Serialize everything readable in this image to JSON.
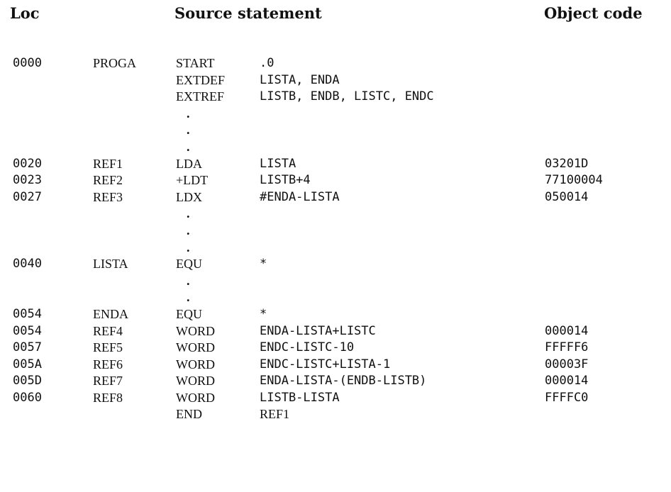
{
  "headers": {
    "loc": "Loc",
    "source": "Source statement",
    "object": "Object code"
  },
  "rows": [
    {
      "loc": "0000",
      "label": "PROGA",
      "op": "START",
      "operand": ".0",
      "obj": "",
      "opnd_style": "mono"
    },
    {
      "loc": "",
      "label": "",
      "op": "EXTDEF",
      "operand": "LISTA, ENDA",
      "obj": "",
      "opnd_style": "mono"
    },
    {
      "loc": "",
      "label": "",
      "op": "EXTREF",
      "operand": "LISTB, ENDB, LISTC, ENDC",
      "obj": "",
      "opnd_style": "mono"
    },
    {
      "dot": "."
    },
    {
      "dot": "."
    },
    {
      "dot": "."
    },
    {
      "loc": "0020",
      "label": "REF1",
      "op": "LDA",
      "operand": "LISTA",
      "obj": "03201D",
      "opnd_style": "mono"
    },
    {
      "loc": "0023",
      "label": "REF2",
      "op": "+LDT",
      "operand": "LISTB+4",
      "obj": "77100004",
      "opnd_style": "mono"
    },
    {
      "loc": "0027",
      "label": "REF3",
      "op": "LDX",
      "operand": "#ENDA-LISTA",
      "obj": "050014",
      "opnd_style": "mono"
    },
    {
      "dot": "."
    },
    {
      "dot": "."
    },
    {
      "dot": "."
    },
    {
      "loc": "0040",
      "label": "LISTA",
      "op": "EQU",
      "operand": "*",
      "obj": "",
      "opnd_style": "mono"
    },
    {
      "dot": "."
    },
    {
      "dot": "."
    },
    {
      "loc": "0054",
      "label": "ENDA",
      "op": "EQU",
      "operand": "*",
      "obj": "",
      "opnd_style": "mono"
    },
    {
      "loc": "0054",
      "label": "REF4",
      "op": "WORD",
      "operand": "ENDA-LISTA+LISTC",
      "obj": "000014",
      "opnd_style": "mono"
    },
    {
      "loc": "0057",
      "label": "REF5",
      "op": "WORD",
      "operand": "ENDC-LISTC-10",
      "obj": "FFFFF6",
      "opnd_style": "mono"
    },
    {
      "loc": "005A",
      "label": "REF6",
      "op": "WORD",
      "operand": "ENDC-LISTC+LISTA-1",
      "obj": "00003F",
      "opnd_style": "mono"
    },
    {
      "loc": "005D",
      "label": "REF7",
      "op": "WORD",
      "operand": "ENDA-LISTA-(ENDB-LISTB)",
      "obj": "000014",
      "opnd_style": "mono"
    },
    {
      "loc": "0060",
      "label": "REF8",
      "op": "WORD",
      "operand": "LISTB-LISTA",
      "obj": "FFFFC0",
      "opnd_style": "mono"
    },
    {
      "loc": "",
      "label": "",
      "op": "END",
      "operand": "REF1",
      "obj": "",
      "opnd_style": "serif"
    }
  ]
}
